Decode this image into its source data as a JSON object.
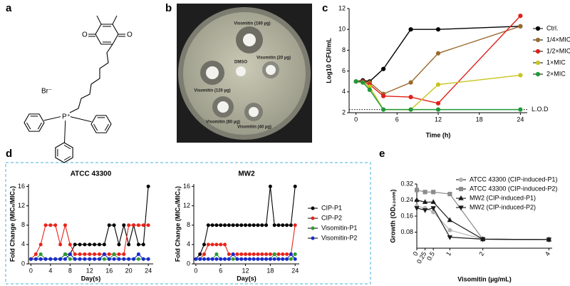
{
  "panel_labels": [
    "a",
    "b",
    "c",
    "d",
    "e"
  ],
  "molecule": {
    "atoms": [
      "O",
      "O",
      "Br⁻",
      "P⁺"
    ]
  },
  "plate": {
    "labels": [
      "Visomitin (160 µg)",
      "Visomitin (120 µg)",
      "DMSO",
      "Visomitin (20 µg)",
      "Visomitin (80 µg)",
      "Visomitin (40 µg)"
    ]
  },
  "chart_data": [
    {
      "type": "line",
      "ylabel": "Log10 CFU/mL",
      "xlabel": "Time (h)",
      "x": [
        0,
        1,
        2,
        4,
        8,
        12,
        24
      ],
      "xlim": [
        -1,
        25
      ],
      "xticks": [
        0,
        6,
        12,
        18,
        24
      ],
      "ylim": [
        2,
        12
      ],
      "yticks": [
        2,
        4,
        6,
        8,
        10,
        12
      ],
      "lod": {
        "value": 2.3,
        "label": "L.O.D"
      },
      "series": [
        {
          "name": "Ctrl.",
          "color": "#000000",
          "marker": "circle",
          "values": [
            5,
            5.1,
            5,
            6.2,
            10,
            10,
            10.3
          ]
        },
        {
          "name": "1/4×MIC",
          "color": "#9a6a2e",
          "marker": "circle",
          "values": [
            5,
            5,
            4.9,
            3.8,
            4.9,
            7.7,
            10.3
          ]
        },
        {
          "name": "1/2×MIC",
          "color": "#e0201a",
          "marker": "circle",
          "values": [
            5,
            5,
            4.7,
            3.6,
            3.5,
            2.9,
            11.3
          ]
        },
        {
          "name": "1×MIC",
          "color": "#c8c41e",
          "marker": "circle",
          "values": [
            5,
            4.9,
            4.5,
            2.3,
            2.3,
            4.7,
            5.6
          ]
        },
        {
          "name": "2×MIC",
          "color": "#1f9a3a",
          "marker": "circle",
          "values": [
            5,
            4.9,
            4.2,
            2.3,
            2.3,
            2.3,
            2.3
          ]
        }
      ]
    },
    {
      "type": "line",
      "title": "ATCC 43300",
      "ylabel": "Fold Change (MICₙ/MIC₀)",
      "xlabel": "Day(s)",
      "x": [
        0,
        1,
        2,
        3,
        4,
        5,
        6,
        7,
        8,
        9,
        10,
        11,
        12,
        13,
        14,
        15,
        16,
        17,
        18,
        19,
        20,
        21,
        22,
        23,
        24
      ],
      "xlim": [
        -0.5,
        25
      ],
      "xticks": [
        0,
        4,
        8,
        12,
        16,
        20,
        24
      ],
      "ylim": [
        0,
        16.5
      ],
      "yticks": [
        0,
        4,
        8,
        12,
        16
      ],
      "series": [
        {
          "name": "CIP-P1",
          "color": "#000000",
          "marker": "circle",
          "values": [
            1,
            1,
            1,
            1,
            1,
            1,
            1,
            2,
            2,
            4,
            4,
            4,
            4,
            4,
            4,
            4,
            8,
            8,
            4,
            8,
            4,
            8,
            4,
            4,
            16
          ]
        },
        {
          "name": "CIP-P2",
          "color": "#e8241a",
          "marker": "circle",
          "values": [
            1,
            2,
            4,
            8,
            8,
            8,
            4,
            8,
            4,
            2,
            2,
            2,
            2,
            2,
            2,
            2,
            2,
            2,
            2,
            2,
            8,
            8,
            8,
            8,
            8
          ]
        },
        {
          "name": "Visomitin-P1",
          "color": "#2e9a2e",
          "marker": "circle",
          "values": [
            1,
            1,
            2,
            1,
            1,
            1,
            1,
            2,
            1,
            1,
            1,
            1,
            1,
            1,
            1,
            1,
            1,
            2,
            1,
            1,
            1,
            1,
            1,
            1,
            1
          ]
        },
        {
          "name": "Visomitin-P2",
          "color": "#1a2ad0",
          "marker": "circle",
          "values": [
            1,
            1,
            1,
            1,
            1,
            1,
            1,
            1,
            2,
            1,
            1,
            1,
            1,
            1,
            1,
            2,
            1,
            1,
            1,
            1,
            1,
            1,
            2,
            1,
            1
          ]
        }
      ]
    },
    {
      "type": "line",
      "title": "MW2",
      "ylabel": "Fold Change (MICₙ/MIC₀)",
      "xlabel": "Day(s)",
      "x": [
        0,
        1,
        2,
        3,
        4,
        5,
        6,
        7,
        8,
        9,
        10,
        11,
        12,
        13,
        14,
        15,
        16,
        17,
        18,
        19,
        20,
        21,
        22,
        23,
        24
      ],
      "xlim": [
        -0.5,
        25
      ],
      "xticks": [
        0,
        6,
        12,
        18,
        24
      ],
      "ylim": [
        0,
        16.5
      ],
      "yticks": [
        0,
        4,
        8,
        12,
        16
      ],
      "series": [
        {
          "name": "CIP-P1",
          "color": "#000000",
          "marker": "circle",
          "values": [
            1,
            2,
            4,
            8,
            8,
            8,
            8,
            8,
            8,
            8,
            8,
            8,
            8,
            8,
            8,
            8,
            8,
            8,
            16,
            8,
            8,
            8,
            8,
            8,
            16
          ]
        },
        {
          "name": "CIP-P2",
          "color": "#e8241a",
          "marker": "circle",
          "values": [
            1,
            1,
            2,
            4,
            4,
            4,
            4,
            4,
            2,
            2,
            2,
            2,
            2,
            2,
            2,
            2,
            2,
            2,
            2,
            2,
            2,
            2,
            2,
            2,
            8
          ]
        },
        {
          "name": "Visomitin-P1",
          "color": "#2e9a2e",
          "marker": "circle",
          "values": [
            1,
            1,
            1,
            1,
            1,
            2,
            1,
            1,
            1,
            1,
            1,
            1,
            1,
            1,
            1,
            1,
            1,
            1,
            1,
            2,
            1,
            1,
            1,
            1,
            2
          ]
        },
        {
          "name": "Visomitin-P2",
          "color": "#1a2ad0",
          "marker": "circle",
          "values": [
            1,
            1,
            1,
            1,
            1,
            1,
            1,
            1,
            1,
            2,
            1,
            1,
            1,
            1,
            1,
            1,
            1,
            1,
            1,
            1,
            1,
            1,
            1,
            2,
            1
          ]
        }
      ]
    },
    {
      "type": "line",
      "ylabel": "Growth (OD₆₃₀ₙₘ)",
      "xlabel": "Visomitin (µg/mL)",
      "x": [
        0,
        0.25,
        0.5,
        1,
        2,
        4
      ],
      "xlim": [
        0,
        4.1
      ],
      "xticks": [
        0,
        0.25,
        0.5,
        1,
        2,
        4
      ],
      "ylim": [
        0,
        0.32
      ],
      "yticks": [
        0.08,
        0.16,
        0.24,
        0.32
      ],
      "series": [
        {
          "name": "ATCC 43300 (CIP-induced-P1)",
          "color": "#b4b4b4",
          "marker": "circle",
          "values": [
            0.21,
            0.2,
            0.18,
            0.09,
            0.045,
            0.043
          ]
        },
        {
          "name": "ATCC 43300 (CIP-induced-P2)",
          "color": "#8c8c8c",
          "marker": "square",
          "values": [
            0.29,
            0.28,
            0.28,
            0.27,
            0.045,
            0.043
          ]
        },
        {
          "name": "MW2 (CIP-induced-P1)",
          "color": "#1a1a1a",
          "marker": "tri-up",
          "values": [
            0.24,
            0.23,
            0.23,
            0.14,
            0.045,
            0.043
          ]
        },
        {
          "name": "MW2 (CIP-induced-P2)",
          "color": "#1a1a1a",
          "marker": "tri-down",
          "values": [
            0.2,
            0.19,
            0.2,
            0.055,
            0.045,
            0.043
          ]
        }
      ]
    }
  ]
}
